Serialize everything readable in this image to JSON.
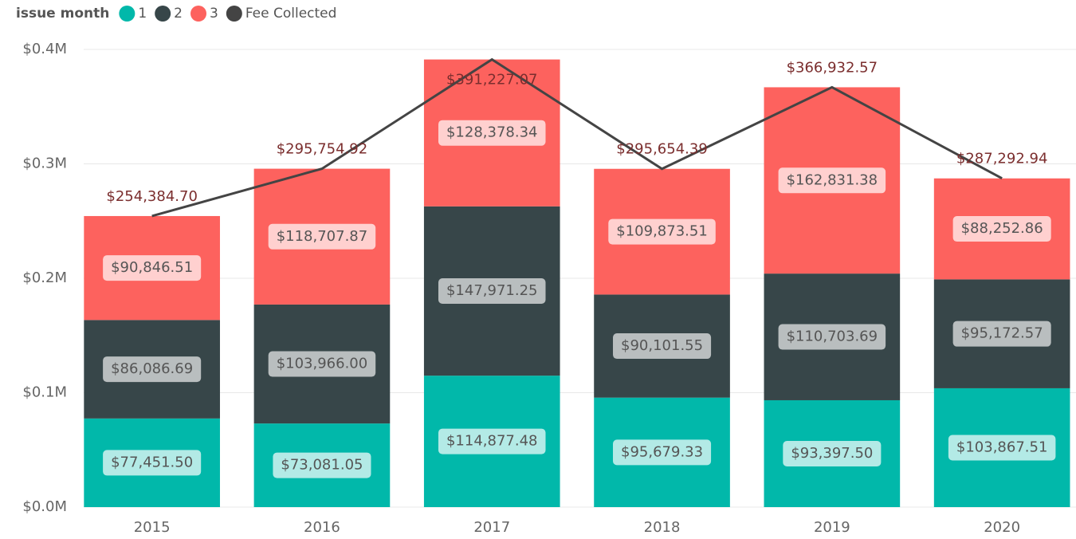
{
  "chart_data": {
    "type": "bar",
    "stacked": true,
    "legend_title": "issue month",
    "categories": [
      "2015",
      "2016",
      "2017",
      "2018",
      "2019",
      "2020"
    ],
    "series": [
      {
        "name": "1",
        "color": "#01B8AA",
        "values": [
          77451.5,
          73081.05,
          114877.48,
          95679.33,
          93397.5,
          103867.51
        ],
        "value_labels": [
          "$77,451.50",
          "$73,081.05",
          "$114,877.48",
          "$95,679.33",
          "$93,397.50",
          "$103,867.51"
        ]
      },
      {
        "name": "2",
        "color": "#374649",
        "values": [
          86086.69,
          103966.0,
          147971.25,
          90101.55,
          110703.69,
          95172.57
        ],
        "value_labels": [
          "$86,086.69",
          "$103,966.00",
          "$147,971.25",
          "$90,101.55",
          "$110,703.69",
          "$95,172.57"
        ]
      },
      {
        "name": "3",
        "color": "#FD625E",
        "values": [
          90846.51,
          118707.87,
          128378.34,
          109873.51,
          162831.38,
          88252.86
        ],
        "value_labels": [
          "$90,846.51",
          "$118,707.87",
          "$128,378.34",
          "$109,873.51",
          "$162,831.38",
          "$88,252.86"
        ]
      },
      {
        "name": "Fee Collected",
        "type": "line",
        "color": "#444444",
        "values": [
          254384.7,
          295754.92,
          391227.07,
          295654.39,
          366932.57,
          287292.94
        ],
        "value_labels": [
          "$254,384.70",
          "$295,754.92",
          "$391,227.07",
          "$295,654.39",
          "$366,932.57",
          "$287,292.94"
        ]
      }
    ],
    "ylim": [
      0,
      400000
    ],
    "yticks": [
      {
        "value": 0,
        "label": "$0.0M"
      },
      {
        "value": 100000,
        "label": "$0.1M"
      },
      {
        "value": 200000,
        "label": "$0.2M"
      },
      {
        "value": 300000,
        "label": "$0.3M"
      },
      {
        "value": 400000,
        "label": "$0.4M"
      }
    ],
    "grid": true
  }
}
